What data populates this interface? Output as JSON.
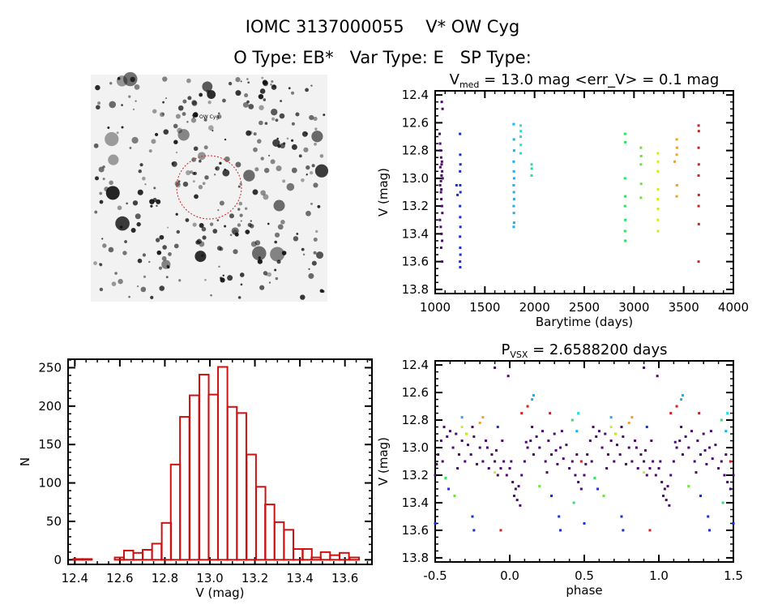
{
  "header": {
    "title": "IOMC 3137000055    V* OW Cyg",
    "subtitle": "O Type: EB*   Var Type: E   SP Type:"
  },
  "finder_image": {
    "label": "V* OW Cyg",
    "colors": {
      "background": "#f2f2f2",
      "stars": "#111111",
      "circle": "#cc2222"
    }
  },
  "chart_data": [
    {
      "type": "scatter",
      "title": {
        "main": "V",
        "sub": "med",
        "rest": " = 13.0 mag <err_V> = 0.1 mag"
      },
      "xlabel": "Barytime (days)",
      "ylabel": "V (mag)",
      "xlim": [
        1000,
        4000
      ],
      "ylim": [
        13.83,
        12.37
      ],
      "y_inverted": true,
      "xticks": [
        "1000",
        "1500",
        "2000",
        "2500",
        "3000",
        "3500",
        "4000"
      ],
      "yticks": [
        "12.4",
        "12.6",
        "12.8",
        "13.0",
        "13.2",
        "13.4",
        "13.6",
        "13.8"
      ],
      "season_colors": [
        "#4a0a6e",
        "#1830d0",
        "#18b0f0",
        "#20e0e0",
        "#20e0a0",
        "#30e060",
        "#70e040",
        "#c8f020",
        "#f0a020",
        "#d02020"
      ],
      "seasons": [
        {
          "t": [
            1045,
            1050,
            1055,
            1060,
            1065,
            1070,
            1075,
            1050,
            1058,
            1062,
            1068,
            1072,
            1048,
            1056,
            1064,
            1070,
            1060,
            1066,
            1074,
            1052,
            1058,
            1064,
            1062,
            1070,
            1068
          ],
          "v": [
            12.68,
            12.75,
            12.8,
            12.85,
            12.9,
            12.95,
            13.0,
            13.05,
            13.1,
            13.15,
            13.2,
            13.25,
            13.3,
            13.35,
            13.4,
            13.45,
            13.5,
            12.45,
            12.5,
            12.92,
            13.02,
            12.98,
            13.08,
            13.6,
            12.88
          ]
        },
        {
          "t": [
            1250,
            1252,
            1254,
            1250,
            1252,
            1254,
            1250,
            1252,
            1254,
            1250,
            1252,
            1254,
            1250,
            1252,
            1215,
            1225
          ],
          "v": [
            12.68,
            12.83,
            12.9,
            12.95,
            13.05,
            13.1,
            13.2,
            13.28,
            13.35,
            13.42,
            13.5,
            13.55,
            13.6,
            13.64,
            13.05,
            13.12
          ]
        },
        {
          "t": [
            1790,
            1792,
            1794,
            1790,
            1792,
            1794,
            1790,
            1792,
            1794,
            1790,
            1792,
            1794,
            1790
          ],
          "v": [
            12.61,
            12.72,
            12.8,
            12.88,
            12.95,
            13.0,
            13.05,
            13.1,
            13.15,
            13.2,
            13.25,
            13.32,
            13.35
          ]
        },
        {
          "t": [
            1860,
            1862,
            1860,
            1862,
            1860
          ],
          "v": [
            12.62,
            12.66,
            12.7,
            12.76,
            12.82
          ]
        },
        {
          "t": [
            1970,
            1972,
            1970
          ],
          "v": [
            12.9,
            12.93,
            12.98
          ]
        },
        {
          "t": [
            2910,
            2912,
            2910,
            2912,
            2910,
            2912,
            2910,
            2912
          ],
          "v": [
            12.68,
            12.74,
            13.0,
            13.13,
            13.2,
            13.3,
            13.38,
            13.45
          ]
        },
        {
          "t": [
            3070,
            3072,
            3070,
            3072,
            3070
          ],
          "v": [
            12.78,
            12.84,
            12.9,
            13.04,
            13.14
          ]
        },
        {
          "t": [
            3240,
            3242,
            3240,
            3242,
            3240,
            3242,
            3240,
            3242
          ],
          "v": [
            12.82,
            12.88,
            12.95,
            13.08,
            13.15,
            13.22,
            13.3,
            13.38
          ]
        },
        {
          "t": [
            3430,
            3432,
            3430,
            3410,
            3432,
            3430
          ],
          "v": [
            12.72,
            12.78,
            12.83,
            12.88,
            13.05,
            13.13
          ]
        },
        {
          "t": [
            3650,
            3652,
            3650,
            3652,
            3650,
            3652,
            3650,
            3652,
            3650
          ],
          "v": [
            12.62,
            12.66,
            12.78,
            12.9,
            12.98,
            13.12,
            13.2,
            13.33,
            13.6
          ]
        }
      ]
    },
    {
      "type": "bar",
      "xlabel": "V (mag)",
      "ylabel": "N",
      "xlim": [
        12.37,
        13.72
      ],
      "ylim": [
        -6,
        261
      ],
      "bin_width": 0.0415,
      "xticks": [
        "12.4",
        "12.6",
        "12.8",
        "13.0",
        "13.2",
        "13.4",
        "13.6"
      ],
      "yticks": [
        "0",
        "50",
        "100",
        "150",
        "200",
        "250"
      ],
      "bar_color": "#cc1111",
      "bins": [
        12.413,
        12.455,
        12.598,
        12.639,
        12.681,
        12.722,
        12.764,
        12.807,
        12.847,
        12.888,
        12.931,
        12.974,
        13.015,
        13.057,
        13.099,
        13.141,
        13.184,
        13.226,
        13.266,
        13.308,
        13.35,
        13.392,
        13.432,
        13.472,
        13.513,
        13.555,
        13.597,
        13.642
      ],
      "counts": [
        1,
        1,
        3,
        12,
        9,
        13,
        21,
        48,
        124,
        186,
        214,
        241,
        215,
        251,
        199,
        191,
        137,
        95,
        72,
        49,
        39,
        14,
        14,
        3,
        10,
        6,
        9,
        3
      ]
    },
    {
      "type": "scatter",
      "title": {
        "main": "P",
        "sub": "VSX",
        "rest": " = 2.6588200 days"
      },
      "xlabel": "phase",
      "ylabel": "V (mag)",
      "xlim": [
        -0.5,
        1.5
      ],
      "ylim": [
        13.83,
        12.37
      ],
      "y_inverted": true,
      "period_days": 2.65882,
      "xticks": [
        "-0.5",
        "0.0",
        "0.5",
        "1.0",
        "1.5"
      ],
      "yticks": [
        "12.4",
        "12.6",
        "12.8",
        "13.0",
        "13.2",
        "13.4",
        "13.6",
        "13.8"
      ],
      "points": [
        [
          0.0,
          13.15,
          0
        ],
        [
          0.02,
          13.25,
          0
        ],
        [
          0.04,
          13.3,
          0
        ],
        [
          0.05,
          13.38,
          0
        ],
        [
          0.06,
          13.28,
          0
        ],
        [
          0.08,
          13.2,
          0
        ],
        [
          0.1,
          13.1,
          0
        ],
        [
          0.12,
          13.0,
          0
        ],
        [
          0.14,
          12.95,
          0
        ],
        [
          0.16,
          13.05,
          0
        ],
        [
          0.18,
          12.92,
          0
        ],
        [
          0.2,
          13.0,
          0
        ],
        [
          0.22,
          12.88,
          0
        ],
        [
          0.24,
          13.1,
          0
        ],
        [
          0.26,
          12.95,
          0
        ],
        [
          0.28,
          13.05,
          0
        ],
        [
          0.3,
          12.9,
          0
        ],
        [
          0.32,
          13.12,
          0
        ],
        [
          0.34,
          13.0,
          0
        ],
        [
          0.36,
          13.08,
          0
        ],
        [
          0.38,
          12.98,
          0
        ],
        [
          0.4,
          13.15,
          0
        ],
        [
          0.42,
          13.1,
          0
        ],
        [
          0.44,
          13.2,
          0
        ],
        [
          0.46,
          13.25,
          0
        ],
        [
          0.48,
          13.3,
          0
        ],
        [
          0.5,
          13.2,
          0
        ],
        [
          0.52,
          13.05,
          0
        ],
        [
          0.54,
          12.95,
          0
        ],
        [
          0.56,
          12.85,
          0
        ],
        [
          0.58,
          12.92,
          0
        ],
        [
          0.6,
          12.88,
          0
        ],
        [
          0.62,
          13.0,
          0
        ],
        [
          0.64,
          12.9,
          0
        ],
        [
          0.66,
          13.05,
          0
        ],
        [
          0.68,
          12.95,
          0
        ],
        [
          0.7,
          13.1,
          0
        ],
        [
          0.72,
          12.98,
          0
        ],
        [
          0.74,
          13.05,
          0
        ],
        [
          0.76,
          12.92,
          0
        ],
        [
          0.78,
          13.12,
          0
        ],
        [
          0.8,
          13.0,
          0
        ],
        [
          0.82,
          13.1,
          0
        ],
        [
          0.84,
          12.95,
          0
        ],
        [
          0.86,
          13.15,
          0
        ],
        [
          0.88,
          13.05,
          0
        ],
        [
          0.9,
          13.1,
          0
        ],
        [
          0.92,
          13.2,
          0
        ],
        [
          0.94,
          13.15,
          0
        ],
        [
          0.96,
          13.1,
          0
        ],
        [
          0.98,
          13.2,
          0
        ],
        [
          0.01,
          13.1,
          0
        ],
        [
          0.03,
          13.35,
          0
        ],
        [
          0.07,
          13.42,
          0
        ],
        [
          0.15,
          12.85,
          0
        ],
        [
          0.25,
          13.18,
          0
        ],
        [
          0.35,
          12.88,
          0
        ],
        [
          0.45,
          13.05,
          0
        ],
        [
          0.55,
          13.1,
          0
        ],
        [
          0.65,
          13.15,
          0
        ],
        [
          0.75,
          12.85,
          0
        ],
        [
          0.85,
          13.0,
          0
        ],
        [
          0.95,
          12.95,
          0
        ],
        [
          0.9,
          12.42,
          0
        ],
        [
          0.99,
          12.48,
          0
        ],
        [
          0.11,
          12.96,
          0
        ],
        [
          0.31,
          13.02,
          0
        ],
        [
          0.51,
          13.12,
          0
        ],
        [
          0.71,
          12.9,
          0
        ],
        [
          0.91,
          13.02,
          0
        ],
        [
          0.15,
          12.65,
          2
        ],
        [
          0.16,
          12.62,
          2
        ],
        [
          0.68,
          12.78,
          2
        ],
        [
          0.45,
          12.88,
          2
        ],
        [
          0.33,
          13.5,
          1
        ],
        [
          0.34,
          13.6,
          1
        ],
        [
          0.5,
          13.55,
          1
        ],
        [
          0.75,
          13.5,
          1
        ],
        [
          0.76,
          13.6,
          1
        ],
        [
          0.28,
          13.35,
          1
        ],
        [
          0.59,
          13.3,
          1
        ],
        [
          0.92,
          12.85,
          1
        ],
        [
          0.12,
          12.7,
          9
        ],
        [
          0.27,
          12.75,
          9
        ],
        [
          0.48,
          13.1,
          9
        ],
        [
          0.08,
          12.75,
          9
        ],
        [
          0.94,
          13.6,
          9
        ],
        [
          0.42,
          12.8,
          5
        ],
        [
          0.43,
          13.4,
          5
        ],
        [
          0.57,
          13.22,
          5
        ],
        [
          0.68,
          12.85,
          7
        ],
        [
          0.71,
          12.9,
          7
        ],
        [
          0.8,
          12.82,
          8
        ],
        [
          0.82,
          12.78,
          8
        ],
        [
          0.46,
          12.75,
          3
        ],
        [
          0.2,
          13.28,
          6
        ],
        [
          0.63,
          13.35,
          6
        ],
        [
          0.9,
          13.18,
          7
        ]
      ]
    }
  ]
}
